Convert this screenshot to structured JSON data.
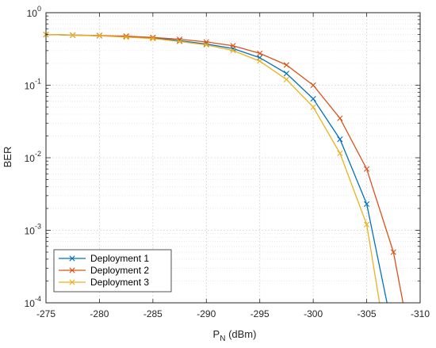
{
  "chart_data": {
    "type": "line",
    "title": "",
    "xlabel": "P",
    "xlabel_sub": "N",
    "xlabel_unit": " (dBm)",
    "ylabel": "BER",
    "x_direction": "reversed",
    "xlim": [
      -275,
      -310
    ],
    "ylim": [
      0.0001,
      1
    ],
    "yscale": "log",
    "xticks": [
      "-275",
      "-280",
      "-285",
      "-290",
      "-295",
      "-300",
      "-305",
      "-310"
    ],
    "xtick_values": [
      -275,
      -280,
      -285,
      -290,
      -295,
      -300,
      -305,
      -310
    ],
    "yticks": [
      {
        "base": "10",
        "exp": "-4",
        "value": 0.0001
      },
      {
        "base": "10",
        "exp": "-3",
        "value": 0.001
      },
      {
        "base": "10",
        "exp": "-2",
        "value": 0.01
      },
      {
        "base": "10",
        "exp": "-1",
        "value": 0.1
      },
      {
        "base": "10",
        "exp": "0",
        "value": 1
      }
    ],
    "grid": true,
    "minor_grid": true,
    "legend_position": "bottom-left",
    "series": [
      {
        "name": "Deployment 1",
        "color": "#0072BD",
        "marker": "x",
        "x": [
          -275.0,
          -277.5,
          -280.0,
          -282.5,
          -285.0,
          -287.5,
          -290.0,
          -292.5,
          -295.0,
          -297.5,
          -300.0,
          -302.5,
          -305.0
        ],
        "y": [
          0.5,
          0.49,
          0.48,
          0.47,
          0.45,
          0.41,
          0.37,
          0.32,
          0.24,
          0.145,
          0.065,
          0.018,
          0.0023
        ],
        "tail": [
          [
            -305.0,
            0.0023
          ],
          [
            -306.9,
            0.0001
          ]
        ]
      },
      {
        "name": "Deployment 2",
        "color": "#D95319",
        "marker": "x",
        "x": [
          -275.0,
          -277.5,
          -280.0,
          -282.5,
          -285.0,
          -287.5,
          -290.0,
          -292.5,
          -295.0,
          -297.5,
          -300.0,
          -302.5,
          -305.0,
          -307.5
        ],
        "y": [
          0.5,
          0.49,
          0.485,
          0.475,
          0.455,
          0.43,
          0.395,
          0.35,
          0.275,
          0.19,
          0.1,
          0.035,
          0.007,
          0.0005
        ],
        "tail": [
          [
            -307.5,
            0.0005
          ],
          [
            -308.4,
            0.0001
          ]
        ]
      },
      {
        "name": "Deployment 3",
        "color": "#EDB120",
        "marker": "x",
        "x": [
          -275.0,
          -277.5,
          -280.0,
          -282.5,
          -285.0,
          -287.5,
          -290.0,
          -292.5,
          -295.0,
          -297.5,
          -300.0,
          -302.5,
          -305.0
        ],
        "y": [
          0.5,
          0.49,
          0.48,
          0.46,
          0.44,
          0.4,
          0.36,
          0.3,
          0.215,
          0.12,
          0.05,
          0.0115,
          0.0012
        ],
        "tail": [
          [
            -305.0,
            0.0012
          ],
          [
            -306.2,
            0.0001
          ]
        ]
      }
    ]
  }
}
